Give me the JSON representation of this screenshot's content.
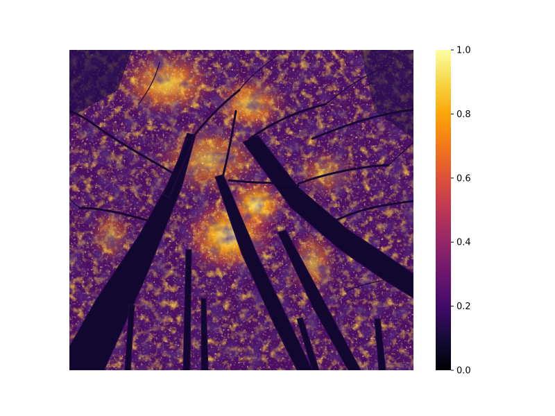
{
  "figure": {
    "kind": "colormapped photograph",
    "subject": "upward view of tall tree trunks converging into a dense, sunlit leaf canopy",
    "colormap": "inferno",
    "axes_visible": false
  },
  "colorbar": {
    "range": [
      0.0,
      1.0
    ],
    "ticks": [
      "0.0",
      "0.2",
      "0.4",
      "0.6",
      "0.8",
      "1.0"
    ],
    "colors": {
      "stop_0_0": "#000004",
      "stop_0_1": "#160b39",
      "stop_0_2": "#420a68",
      "stop_0_3": "#6a176e",
      "stop_0_4": "#932667",
      "stop_0_5": "#bc3754",
      "stop_0_6": "#dd513a",
      "stop_0_7": "#f37819",
      "stop_0_8": "#fca50a",
      "stop_0_9": "#f6d746",
      "stop_1_0": "#fcffa4"
    }
  }
}
